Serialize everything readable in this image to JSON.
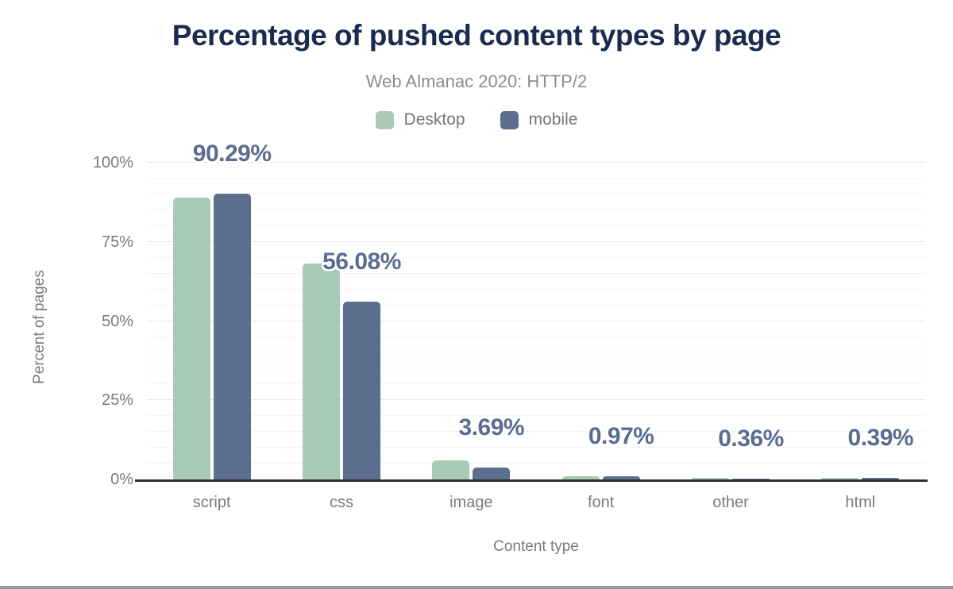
{
  "page": {
    "title": "Percentage of pushed content types by page",
    "subtitle": "Web Almanac 2020: HTTP/2"
  },
  "legend": [
    {
      "label": "Desktop",
      "color": "#a8cab6"
    },
    {
      "label": "mobile",
      "color": "#5b6e8e"
    }
  ],
  "chart_data": {
    "type": "bar",
    "title": "Percentage of pushed content types by page",
    "subtitle": "Web Almanac 2020: HTTP/2",
    "xlabel": "Content type",
    "ylabel": "Percent of pages",
    "categories": [
      "script",
      "css",
      "image",
      "font",
      "other",
      "html"
    ],
    "series": [
      {
        "name": "Desktop",
        "color": "#a8cab6",
        "values": [
          89.0,
          68.1,
          5.9,
          1.0,
          0.5,
          0.5
        ]
      },
      {
        "name": "mobile",
        "color": "#5b6e8e",
        "values": [
          90.29,
          56.08,
          3.69,
          0.97,
          0.36,
          0.39
        ]
      }
    ],
    "data_labels": [
      "90.29%",
      "56.08%",
      "3.69%",
      "0.97%",
      "0.36%",
      "0.39%"
    ],
    "yticks": [
      {
        "label": "0%",
        "value": 0
      },
      {
        "label": "25%",
        "value": 25
      },
      {
        "label": "50%",
        "value": 50
      },
      {
        "label": "75%",
        "value": 75
      },
      {
        "label": "100%",
        "value": 100
      }
    ],
    "ylim": [
      0,
      100
    ],
    "grid": {
      "major_step": 25,
      "minor_step": 5
    },
    "legend_position": "top"
  },
  "colors": {
    "title": "#1b2b4e",
    "subtitle": "#8d8d8d",
    "axis_text": "#7b7b7b",
    "data_label": "#5a6d90",
    "axis_line": "#2f2f2f",
    "grid_major": "#e8e8e8",
    "grid_minor": "#f4f4f4",
    "desktop_bar": "#a8cab6",
    "mobile_bar": "#5b6e8e"
  }
}
